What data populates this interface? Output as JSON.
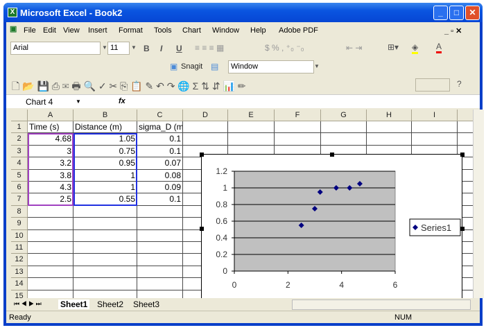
{
  "window": {
    "title": "Microsoft Excel - Book2",
    "app_icon": "excel-icon"
  },
  "menu": [
    "File",
    "Edit",
    "View",
    "Insert",
    "Format",
    "Tools",
    "Chart",
    "Window",
    "Help",
    "Adobe PDF"
  ],
  "formatting": {
    "font": "Arial",
    "size": "11"
  },
  "snagit": {
    "label": "Snagit",
    "window_select": "Window"
  },
  "formula_bar": {
    "name_box": "Chart 4",
    "fx": "fx",
    "value": ""
  },
  "columns": [
    "A",
    "B",
    "C",
    "D",
    "E",
    "F",
    "G",
    "H",
    "I"
  ],
  "rows": [
    "1",
    "2",
    "3",
    "4",
    "5",
    "6",
    "7",
    "8",
    "9",
    "10",
    "11",
    "12",
    "13",
    "14",
    "15"
  ],
  "cells": [
    [
      "Time (s)",
      "Distance (m)",
      "sigma_D (m)"
    ],
    [
      "4.68",
      "1.05",
      "0.1"
    ],
    [
      "3",
      "0.75",
      "0.1"
    ],
    [
      "3.2",
      "0.95",
      "0.07"
    ],
    [
      "3.8",
      "1",
      "0.08"
    ],
    [
      "4.3",
      "1",
      "0.09"
    ],
    [
      "2.5",
      "0.55",
      "0.1"
    ]
  ],
  "chart_data": {
    "type": "scatter",
    "x": [
      4.68,
      3,
      3.2,
      3.8,
      4.3,
      2.5
    ],
    "series": [
      {
        "name": "Series1",
        "values": [
          1.05,
          0.75,
          0.95,
          1,
          1,
          0.55
        ]
      }
    ],
    "xlim": [
      0,
      6
    ],
    "ylim": [
      0,
      1.2
    ],
    "xticks": [
      "0",
      "2",
      "4",
      "6"
    ],
    "yticks": [
      "0",
      "0.2",
      "0.4",
      "0.6",
      "0.8",
      "1",
      "1.2"
    ],
    "grid": true,
    "legend": "right",
    "plot_bg": "#c0c0c0",
    "marker_color": "#000080"
  },
  "sheets": [
    "Sheet1",
    "Sheet2",
    "Sheet3"
  ],
  "active_sheet": "Sheet1",
  "status": {
    "left": "Ready",
    "num": "NUM"
  }
}
